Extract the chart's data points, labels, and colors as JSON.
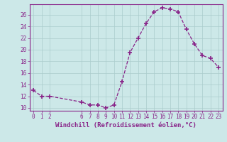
{
  "x": [
    0,
    1,
    2,
    6,
    7,
    8,
    9,
    10,
    11,
    12,
    13,
    14,
    15,
    16,
    17,
    18,
    19,
    20,
    21,
    22,
    23
  ],
  "y": [
    13,
    12,
    12,
    11,
    10.5,
    10.5,
    10,
    10.5,
    14.5,
    19.5,
    22,
    24.5,
    26.5,
    27.2,
    27,
    26.5,
    23.5,
    21,
    19,
    18.5,
    17
  ],
  "line_color": "#882288",
  "marker": "+",
  "marker_size": 4,
  "bg_color": "#cce8e8",
  "grid_color": "#aacccc",
  "axis_color": "#882288",
  "tick_color": "#882288",
  "xlabel": "Windchill (Refroidissement éolien,°C)",
  "xlim": [
    -0.5,
    23.5
  ],
  "ylim": [
    9.5,
    27.8
  ],
  "yticks": [
    10,
    12,
    14,
    16,
    18,
    20,
    22,
    24,
    26
  ],
  "ytick_labels": [
    "10",
    "12",
    "14",
    "16",
    "18",
    "20",
    "22",
    "24",
    "26"
  ],
  "xticks": [
    0,
    1,
    2,
    6,
    7,
    8,
    9,
    10,
    11,
    12,
    13,
    14,
    15,
    16,
    17,
    18,
    19,
    20,
    21,
    22,
    23
  ],
  "xtick_labels": [
    "0",
    "1",
    "2",
    "6",
    "7",
    "8",
    "9",
    "10",
    "11",
    "12",
    "13",
    "14",
    "15",
    "16",
    "17",
    "18",
    "19",
    "20",
    "21",
    "22",
    "23"
  ],
  "tick_font_size": 5.5,
  "xlabel_font_size": 6.5,
  "linewidth": 0.9
}
